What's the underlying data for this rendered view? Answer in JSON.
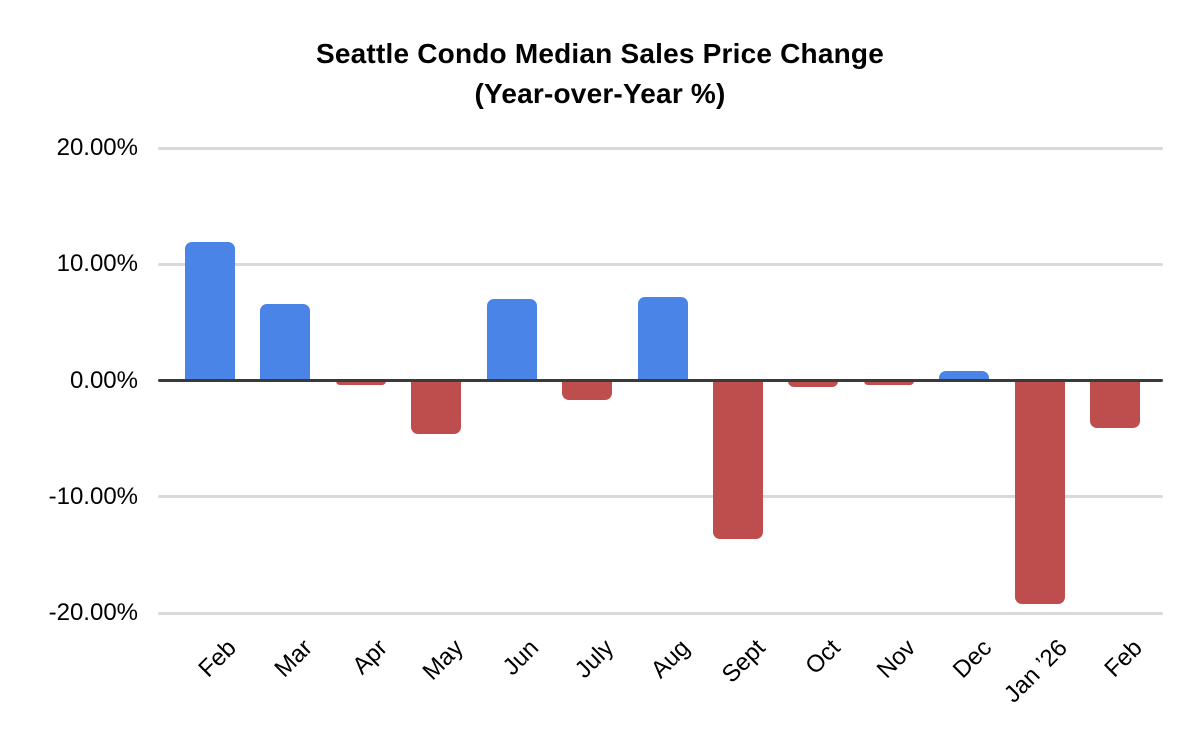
{
  "chart_data": {
    "type": "bar",
    "title": "Seattle Condo Median Sales Price Change",
    "subtitle": "(Year-over-Year %)",
    "categories": [
      "Feb",
      "Mar",
      "Apr",
      "May",
      "Jun",
      "July",
      "Aug",
      "Sept",
      "Oct",
      "Nov",
      "Dec",
      "Jan ’26",
      "Feb"
    ],
    "values": [
      11.9,
      6.6,
      -0.4,
      -4.6,
      7.0,
      -1.7,
      7.2,
      -13.6,
      -0.6,
      -0.4,
      0.8,
      -19.2,
      -4.1
    ],
    "ylabel": "",
    "xlabel": "",
    "ylim": [
      -20,
      20
    ],
    "yticks": [
      {
        "value": 20,
        "label": "20.00%"
      },
      {
        "value": 10,
        "label": "10.00%"
      },
      {
        "value": 0,
        "label": "0.00%"
      },
      {
        "value": -10,
        "label": "-10.00%"
      },
      {
        "value": -20,
        "label": "-20.00%"
      }
    ],
    "grid": true,
    "legend_position": "none",
    "positive_color": "#4A84E6",
    "negative_color": "#BE4E4E",
    "gridline_color": "#D9D9D9",
    "axis_color": "#3A3A3A",
    "text_color": "#000000",
    "background_color": "#FFFFFF"
  }
}
